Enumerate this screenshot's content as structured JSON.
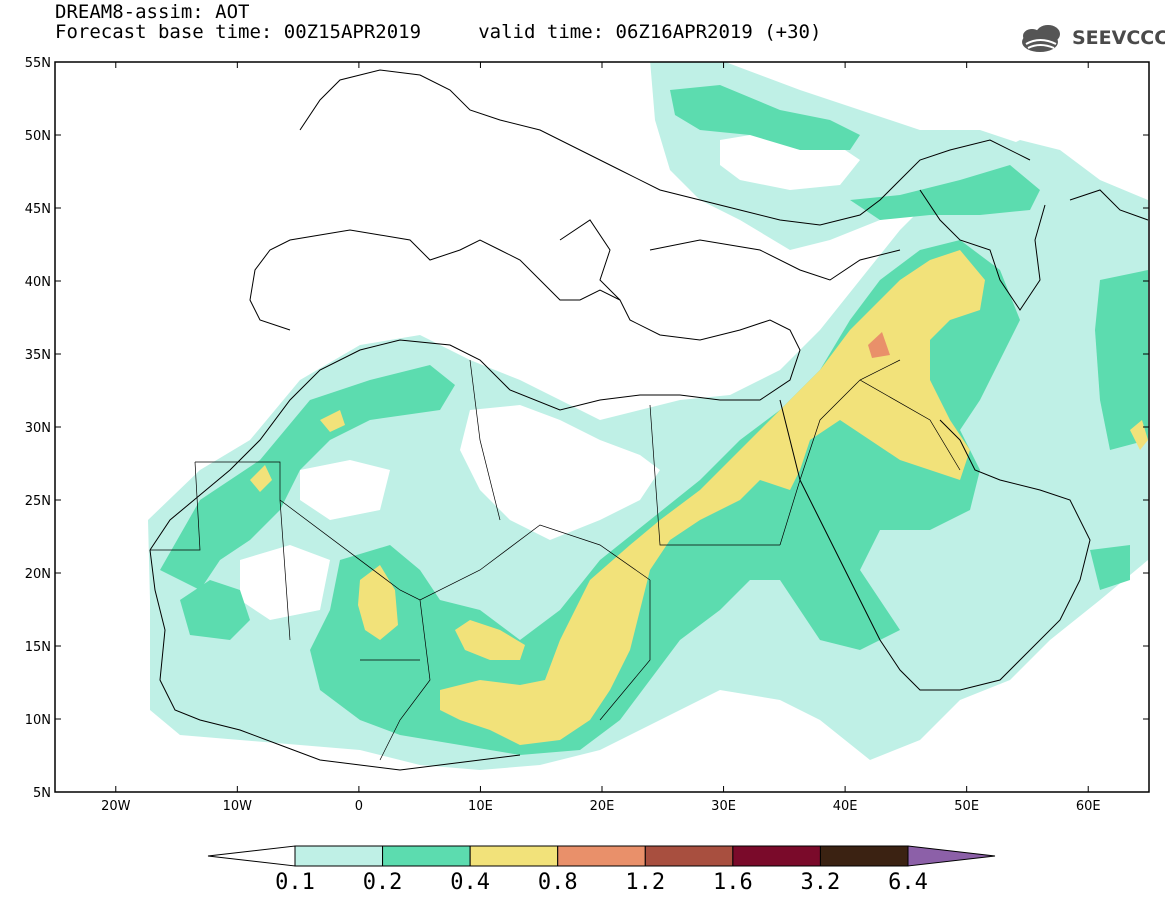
{
  "header": {
    "title": "DREAM8-assim: AOT",
    "forecast_line": "Forecast base time: 00Z15APR2019     valid time: 06Z16APR2019 (+30)",
    "logo_text": "SEEVCCC",
    "logo_icon": "cloud-logo-icon"
  },
  "map": {
    "lon_range": [
      -25,
      65
    ],
    "lat_range": [
      5,
      55
    ],
    "lat_labels": [
      "55N",
      "50N",
      "45N",
      "40N",
      "35N",
      "30N",
      "25N",
      "20N",
      "15N",
      "10N",
      "5N"
    ],
    "lon_labels": [
      "20W",
      "10W",
      "0",
      "10E",
      "20E",
      "30E",
      "40E",
      "50E",
      "60E"
    ]
  },
  "colorbar": {
    "levels": [
      "0.1",
      "0.2",
      "0.4",
      "0.8",
      "1.2",
      "1.6",
      "3.2",
      "6.4"
    ],
    "colors": [
      "#ffffff",
      "#bff0e6",
      "#5cdcaf",
      "#f2e27a",
      "#e9906a",
      "#a84f3f",
      "#7a0a2a",
      "#3b2212",
      "#8c60a8"
    ]
  }
}
